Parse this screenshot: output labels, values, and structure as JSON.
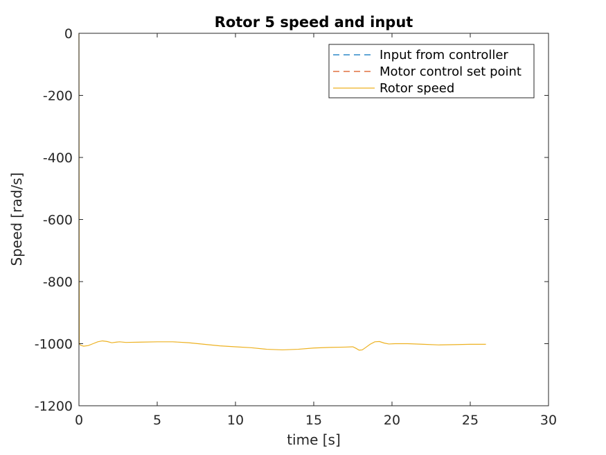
{
  "chart_data": {
    "type": "line",
    "title": "Rotor 5 speed and input",
    "xlabel": "time [s]",
    "ylabel": "Speed [rad/s]",
    "xlim": [
      0,
      30
    ],
    "ylim": [
      -1200,
      0
    ],
    "xticks": [
      0,
      5,
      10,
      15,
      20,
      25,
      30
    ],
    "yticks": [
      0,
      -200,
      -400,
      -600,
      -800,
      -1000,
      -1200
    ],
    "grid": false,
    "legend_position": "top-right",
    "series": [
      {
        "name": "Input from controller",
        "color": "#0072BD",
        "style": "dashed",
        "x": [],
        "y": []
      },
      {
        "name": "Motor control set point",
        "color": "#D95319",
        "style": "dashed",
        "x": [],
        "y": []
      },
      {
        "name": "Rotor speed",
        "color": "#EDB120",
        "style": "solid",
        "x": [
          0,
          0.02,
          0.1,
          0.3,
          0.6,
          0.9,
          1.2,
          1.5,
          1.8,
          2.1,
          2.4,
          2.6,
          3.0,
          4.0,
          5.0,
          6.0,
          7.0,
          8.0,
          9.0,
          10.0,
          11.0,
          12.0,
          13.0,
          14.0,
          15.0,
          16.0,
          17.0,
          17.5,
          17.7,
          17.9,
          18.1,
          18.3,
          18.6,
          18.9,
          19.2,
          19.5,
          19.8,
          20.2,
          21.0,
          22.0,
          23.0,
          24.0,
          25.0,
          26.0
        ],
        "y": [
          0,
          -1000,
          -1005,
          -1008,
          -1006,
          -1000,
          -994,
          -991,
          -993,
          -997,
          -995,
          -994,
          -996,
          -995,
          -994,
          -994,
          -997,
          -1002,
          -1007,
          -1010,
          -1013,
          -1018,
          -1020,
          -1018,
          -1014,
          -1012,
          -1011,
          -1010,
          -1015,
          -1021,
          -1020,
          -1013,
          -1002,
          -994,
          -993,
          -998,
          -1001,
          -1000,
          -1000,
          -1002,
          -1004,
          -1003,
          -1002,
          -1002
        ]
      }
    ]
  }
}
